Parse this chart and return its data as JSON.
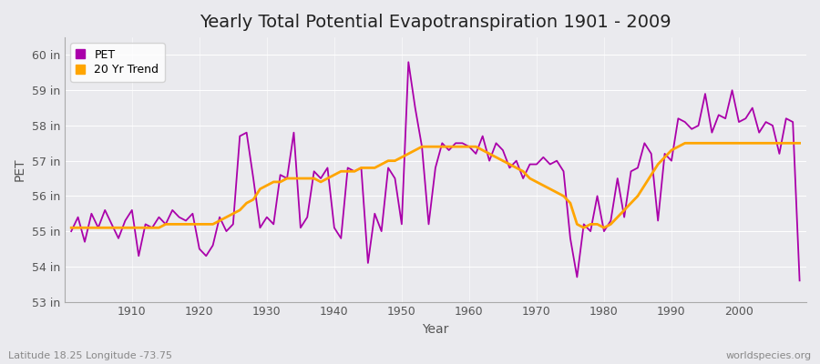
{
  "title": "Yearly Total Potential Evapotranspiration 1901 - 2009",
  "xlabel": "Year",
  "ylabel": "PET",
  "subtitle": "Latitude 18.25 Longitude -73.75",
  "watermark": "worldspecies.org",
  "pet_color": "#AA00AA",
  "trend_color": "#FFA500",
  "years": [
    1901,
    1902,
    1903,
    1904,
    1905,
    1906,
    1907,
    1908,
    1909,
    1910,
    1911,
    1912,
    1913,
    1914,
    1915,
    1916,
    1917,
    1918,
    1919,
    1920,
    1921,
    1922,
    1923,
    1924,
    1925,
    1926,
    1927,
    1928,
    1929,
    1930,
    1931,
    1932,
    1933,
    1934,
    1935,
    1936,
    1937,
    1938,
    1939,
    1940,
    1941,
    1942,
    1943,
    1944,
    1945,
    1946,
    1947,
    1948,
    1949,
    1950,
    1951,
    1952,
    1953,
    1954,
    1955,
    1956,
    1957,
    1958,
    1959,
    1960,
    1961,
    1962,
    1963,
    1964,
    1965,
    1966,
    1967,
    1968,
    1969,
    1970,
    1971,
    1972,
    1973,
    1974,
    1975,
    1976,
    1977,
    1978,
    1979,
    1980,
    1981,
    1982,
    1983,
    1984,
    1985,
    1986,
    1987,
    1988,
    1989,
    1990,
    1991,
    1992,
    1993,
    1994,
    1995,
    1996,
    1997,
    1998,
    1999,
    2000,
    2001,
    2002,
    2003,
    2004,
    2005,
    2006,
    2007,
    2008,
    2009
  ],
  "pet_values": [
    55.0,
    55.4,
    54.7,
    55.5,
    55.1,
    55.6,
    55.2,
    54.8,
    55.3,
    55.6,
    54.3,
    55.2,
    55.1,
    55.4,
    55.2,
    55.6,
    55.4,
    55.3,
    55.5,
    54.5,
    54.3,
    54.6,
    55.4,
    55.0,
    55.2,
    57.7,
    57.8,
    56.5,
    55.1,
    55.4,
    55.2,
    56.6,
    56.5,
    57.8,
    55.1,
    55.4,
    56.7,
    56.5,
    56.8,
    55.1,
    54.8,
    56.8,
    56.7,
    56.8,
    54.1,
    55.5,
    55.0,
    56.8,
    56.5,
    55.2,
    59.8,
    58.5,
    57.4,
    55.2,
    56.8,
    57.5,
    57.3,
    57.5,
    57.5,
    57.4,
    57.2,
    57.7,
    57.0,
    57.5,
    57.3,
    56.8,
    57.0,
    56.5,
    56.9,
    56.9,
    57.1,
    56.9,
    57.0,
    56.7,
    54.8,
    53.7,
    55.2,
    55.0,
    56.0,
    55.0,
    55.3,
    56.5,
    55.4,
    56.7,
    56.8,
    57.5,
    57.2,
    55.3,
    57.2,
    57.0,
    58.2,
    58.1,
    57.9,
    58.0,
    58.9,
    57.8,
    58.3,
    58.2,
    59.0,
    58.1,
    58.2,
    58.5,
    57.8,
    58.1,
    58.0,
    57.2,
    58.2,
    58.1,
    53.6
  ],
  "trend_values": [
    55.1,
    55.1,
    55.1,
    55.1,
    55.1,
    55.1,
    55.1,
    55.1,
    55.1,
    55.1,
    55.1,
    55.1,
    55.1,
    55.1,
    55.2,
    55.2,
    55.2,
    55.2,
    55.2,
    55.2,
    55.2,
    55.2,
    55.3,
    55.4,
    55.5,
    55.6,
    55.8,
    55.9,
    56.2,
    56.3,
    56.4,
    56.4,
    56.5,
    56.5,
    56.5,
    56.5,
    56.5,
    56.4,
    56.5,
    56.6,
    56.7,
    56.7,
    56.7,
    56.8,
    56.8,
    56.8,
    56.9,
    57.0,
    57.0,
    57.1,
    57.2,
    57.3,
    57.4,
    57.4,
    57.4,
    57.4,
    57.4,
    57.4,
    57.4,
    57.4,
    57.4,
    57.3,
    57.2,
    57.1,
    57.0,
    56.9,
    56.8,
    56.7,
    56.5,
    56.4,
    56.3,
    56.2,
    56.1,
    56.0,
    55.8,
    55.2,
    55.1,
    55.2,
    55.2,
    55.1,
    55.2,
    55.4,
    55.6,
    55.8,
    56.0,
    56.3,
    56.6,
    56.9,
    57.1,
    57.3,
    57.4,
    57.5,
    57.5,
    57.5,
    57.5,
    57.5,
    57.5,
    57.5,
    57.5,
    57.5,
    57.5,
    57.5,
    57.5,
    57.5,
    57.5,
    57.5,
    57.5,
    57.5,
    57.5
  ],
  "ylim": [
    53.0,
    60.5
  ],
  "yticks": [
    53,
    54,
    55,
    56,
    57,
    58,
    59,
    60
  ],
  "ytick_labels": [
    "53 in",
    "54 in",
    "55 in",
    "56 in",
    "57 in",
    "58 in",
    "59 in",
    "60 in"
  ],
  "xlim": [
    1900,
    2010
  ],
  "xticks": [
    1910,
    1920,
    1930,
    1940,
    1950,
    1960,
    1970,
    1980,
    1990,
    2000
  ],
  "bg_color": "#EAEAEE",
  "fig_bg_color": "#EAEAEE",
  "grid_color": "#FFFFFF",
  "linewidth_pet": 1.3,
  "linewidth_trend": 2.0,
  "title_fontsize": 14,
  "axis_label_fontsize": 10,
  "tick_fontsize": 9,
  "legend_fontsize": 9
}
